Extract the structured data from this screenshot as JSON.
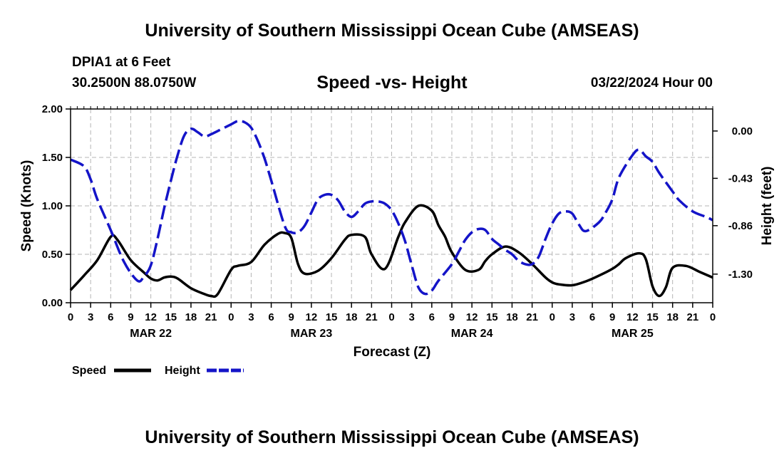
{
  "page": {
    "title_top": "University of Southern Mississippi Ocean Cube (AMSEAS)",
    "title_bottom": "University of Southern Mississippi Ocean Cube (AMSEAS)",
    "station": "DPIA1 at 6 Feet",
    "coords": "30.2500N  88.0750W",
    "subtitle": "Speed -vs- Height",
    "datetime": "03/22/2024 Hour 00"
  },
  "chart_data": {
    "type": "line",
    "title": "Speed -vs- Height",
    "xlabel": "Forecast (Z)",
    "ylabel_left": "Speed (Knots)",
    "ylabel_right": "Height (feet)",
    "x_hours": [
      0,
      96
    ],
    "x_tick_labels": [
      "0",
      "3",
      "6",
      "9",
      "12",
      "15",
      "18",
      "21",
      "0",
      "3",
      "6",
      "9",
      "12",
      "15",
      "18",
      "21",
      "0",
      "3",
      "6",
      "9",
      "12",
      "15",
      "18",
      "21",
      "0",
      "3",
      "6",
      "9",
      "12",
      "15",
      "18",
      "21",
      "0"
    ],
    "day_labels": [
      {
        "label": "MAR 22",
        "hour": 12
      },
      {
        "label": "MAR 23",
        "hour": 36
      },
      {
        "label": "MAR 24",
        "hour": 60
      },
      {
        "label": "MAR 25",
        "hour": 84
      }
    ],
    "ylim_left": [
      0,
      2
    ],
    "yticks_left": [
      "0.00",
      "0.50",
      "1.00",
      "1.50",
      "2.00"
    ],
    "ylim_right": [
      -1.56,
      0.2
    ],
    "yticks_right": [
      {
        "label": "0.00",
        "value": 0.0
      },
      {
        "label": "-0.43",
        "value": -0.43
      },
      {
        "label": "-0.86",
        "value": -0.86
      },
      {
        "label": "-1.30",
        "value": -1.3
      }
    ],
    "grid": true,
    "legend": [
      {
        "label": "Speed",
        "color": "#000000",
        "style": "solid"
      },
      {
        "label": "Height",
        "color": "#1414c8",
        "style": "dashed"
      }
    ],
    "series": [
      {
        "name": "Speed",
        "axis": "left",
        "color": "#000000",
        "x": [
          0,
          2,
          4,
          6,
          7,
          9,
          11,
          12,
          13,
          14,
          15,
          16,
          18,
          20,
          21,
          22,
          24,
          25,
          27,
          29,
          31,
          32,
          33,
          34,
          35,
          37,
          39,
          41,
          42,
          44,
          45,
          47,
          49,
          50,
          52,
          54,
          55,
          56,
          57,
          59,
          61,
          62,
          63,
          65,
          67,
          69,
          71,
          72,
          73,
          75,
          77,
          79,
          81,
          82,
          83,
          85,
          86,
          87,
          88,
          89,
          90,
          92,
          94,
          96
        ],
        "values": [
          0.13,
          0.28,
          0.44,
          0.68,
          0.65,
          0.44,
          0.31,
          0.25,
          0.23,
          0.26,
          0.27,
          0.25,
          0.15,
          0.09,
          0.07,
          0.09,
          0.34,
          0.38,
          0.42,
          0.6,
          0.71,
          0.72,
          0.67,
          0.4,
          0.3,
          0.33,
          0.46,
          0.65,
          0.7,
          0.68,
          0.5,
          0.35,
          0.68,
          0.83,
          1.0,
          0.95,
          0.8,
          0.68,
          0.52,
          0.34,
          0.34,
          0.43,
          0.5,
          0.58,
          0.52,
          0.4,
          0.26,
          0.21,
          0.19,
          0.18,
          0.22,
          0.28,
          0.35,
          0.4,
          0.46,
          0.51,
          0.45,
          0.17,
          0.07,
          0.16,
          0.36,
          0.38,
          0.32,
          0.26
        ]
      },
      {
        "name": "Height",
        "axis": "right",
        "color": "#1414c8",
        "x": [
          0,
          2,
          3,
          4,
          6,
          8,
          10,
          11,
          12,
          13,
          14,
          15,
          16,
          17,
          18,
          19,
          20,
          21,
          22,
          24,
          25,
          26,
          27,
          28,
          29,
          30,
          32,
          33,
          34,
          35,
          36,
          37,
          38,
          39,
          40,
          41,
          42,
          43,
          44,
          45,
          46,
          47,
          48,
          49,
          50,
          51,
          52,
          53,
          54,
          55,
          57,
          58,
          59,
          60,
          61,
          62,
          63,
          64,
          65,
          66,
          67,
          68,
          69,
          70,
          71,
          72,
          73,
          74,
          75,
          76,
          77,
          79,
          80,
          81,
          82,
          84,
          85,
          86,
          87,
          88,
          90,
          91,
          93,
          95,
          96
        ],
        "values": [
          -0.26,
          -0.32,
          -0.44,
          -0.62,
          -0.9,
          -1.19,
          -1.36,
          -1.32,
          -1.22,
          -0.98,
          -0.7,
          -0.45,
          -0.22,
          -0.04,
          0.02,
          -0.01,
          -0.05,
          -0.03,
          0.0,
          0.06,
          0.09,
          0.08,
          0.03,
          -0.09,
          -0.25,
          -0.45,
          -0.86,
          -0.92,
          -0.92,
          -0.86,
          -0.74,
          -0.62,
          -0.58,
          -0.58,
          -0.63,
          -0.73,
          -0.78,
          -0.73,
          -0.66,
          -0.64,
          -0.64,
          -0.66,
          -0.72,
          -0.84,
          -1.0,
          -1.22,
          -1.42,
          -1.48,
          -1.45,
          -1.36,
          -1.21,
          -1.1,
          -0.99,
          -0.92,
          -0.89,
          -0.9,
          -0.98,
          -1.03,
          -1.08,
          -1.12,
          -1.18,
          -1.21,
          -1.21,
          -1.14,
          -0.98,
          -0.84,
          -0.75,
          -0.73,
          -0.75,
          -0.85,
          -0.91,
          -0.83,
          -0.74,
          -0.62,
          -0.42,
          -0.22,
          -0.17,
          -0.23,
          -0.28,
          -0.38,
          -0.55,
          -0.63,
          -0.73,
          -0.78,
          -0.81
        ]
      }
    ]
  }
}
